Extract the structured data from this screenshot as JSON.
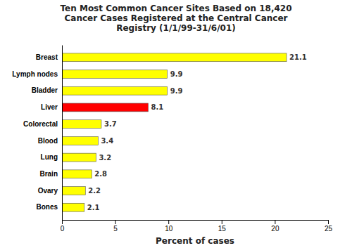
{
  "chart_data": {
    "type": "bar",
    "orientation": "horizontal",
    "title": "Ten Most Common Cancer Sites Based on 18,420\nCancer Cases Registered at the Central Cancer\nRegistry (1/1/99-31/6/01)",
    "categories": [
      "Breast",
      "Lymph nodes",
      "Bladder",
      "Liver",
      "Colorectal",
      "Blood",
      "Lung",
      "Brain",
      "Ovary",
      "Bones"
    ],
    "values": [
      21.1,
      9.9,
      9.9,
      8.1,
      3.7,
      3.4,
      3.2,
      2.8,
      2.2,
      2.1
    ],
    "colors": [
      "#FFFF00",
      "#FFFF00",
      "#FFFF00",
      "#FF0000",
      "#FFFF00",
      "#FFFF00",
      "#FFFF00",
      "#FFFF00",
      "#FFFF00",
      "#FFFF00"
    ],
    "xlabel": "Percent of cases",
    "xlim": [
      0,
      25
    ],
    "xticks": [
      0,
      5,
      10,
      15,
      20,
      25
    ],
    "grid": false,
    "data_labels": true
  }
}
